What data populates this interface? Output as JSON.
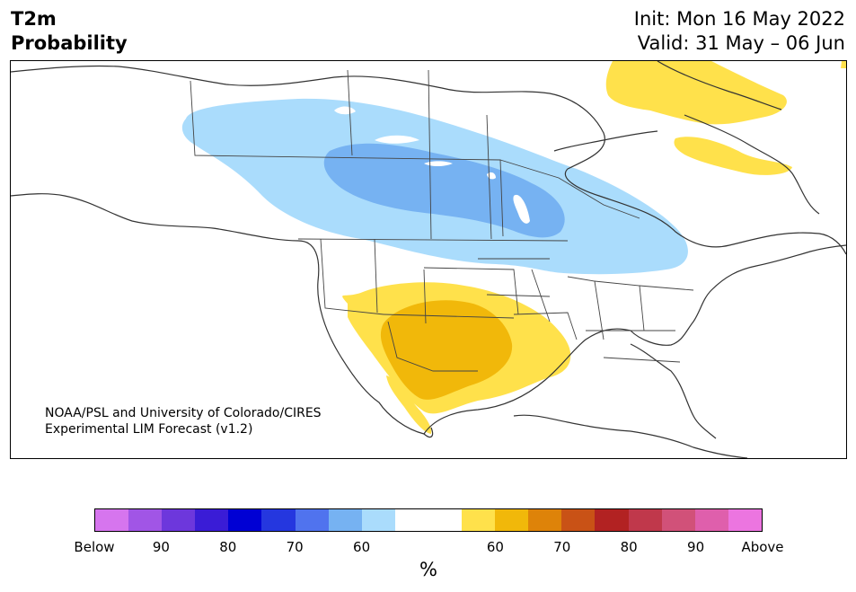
{
  "header": {
    "title_line1": "T2m",
    "title_line2": "Probability",
    "init": "Init: Mon 16 May 2022",
    "valid": "Valid: 31 May – 06 Jun"
  },
  "map": {
    "credit_line1": "NOAA/PSL and University of Colorado/CIRES",
    "credit_line2": "Experimental LIM Forecast (v1.2)",
    "regions": [
      {
        "name": "below-60-northern-plains-canada",
        "category": "Below 60",
        "color": "#aadcfc"
      },
      {
        "name": "below-70-northern-plains-canada",
        "category": "Below 70",
        "color": "#76b2f2"
      },
      {
        "name": "above-60-southwest",
        "category": "Above 60",
        "color": "#ffe14b"
      },
      {
        "name": "above-70-southwest",
        "category": "Above 70",
        "color": "#f1b80a"
      },
      {
        "name": "above-60-greenland-labrador",
        "category": "Above 60",
        "color": "#ffe14b"
      }
    ]
  },
  "colorbar": {
    "colors": [
      "#d675ee",
      "#a155e6",
      "#6d37dc",
      "#3a1cd6",
      "#0000d4",
      "#2537df",
      "#5073ee",
      "#76b2f2",
      "#aadcfc",
      "#ffffff",
      "#ffffff",
      "#ffe14b",
      "#f1b80a",
      "#de8309",
      "#c95216",
      "#b22222",
      "#c0384b",
      "#d15179",
      "#df5fac",
      "#ec75e0"
    ],
    "tick_labels": [
      "Below",
      "90",
      "80",
      "70",
      "60",
      "60",
      "70",
      "80",
      "90",
      "Above"
    ],
    "unit": "%"
  }
}
